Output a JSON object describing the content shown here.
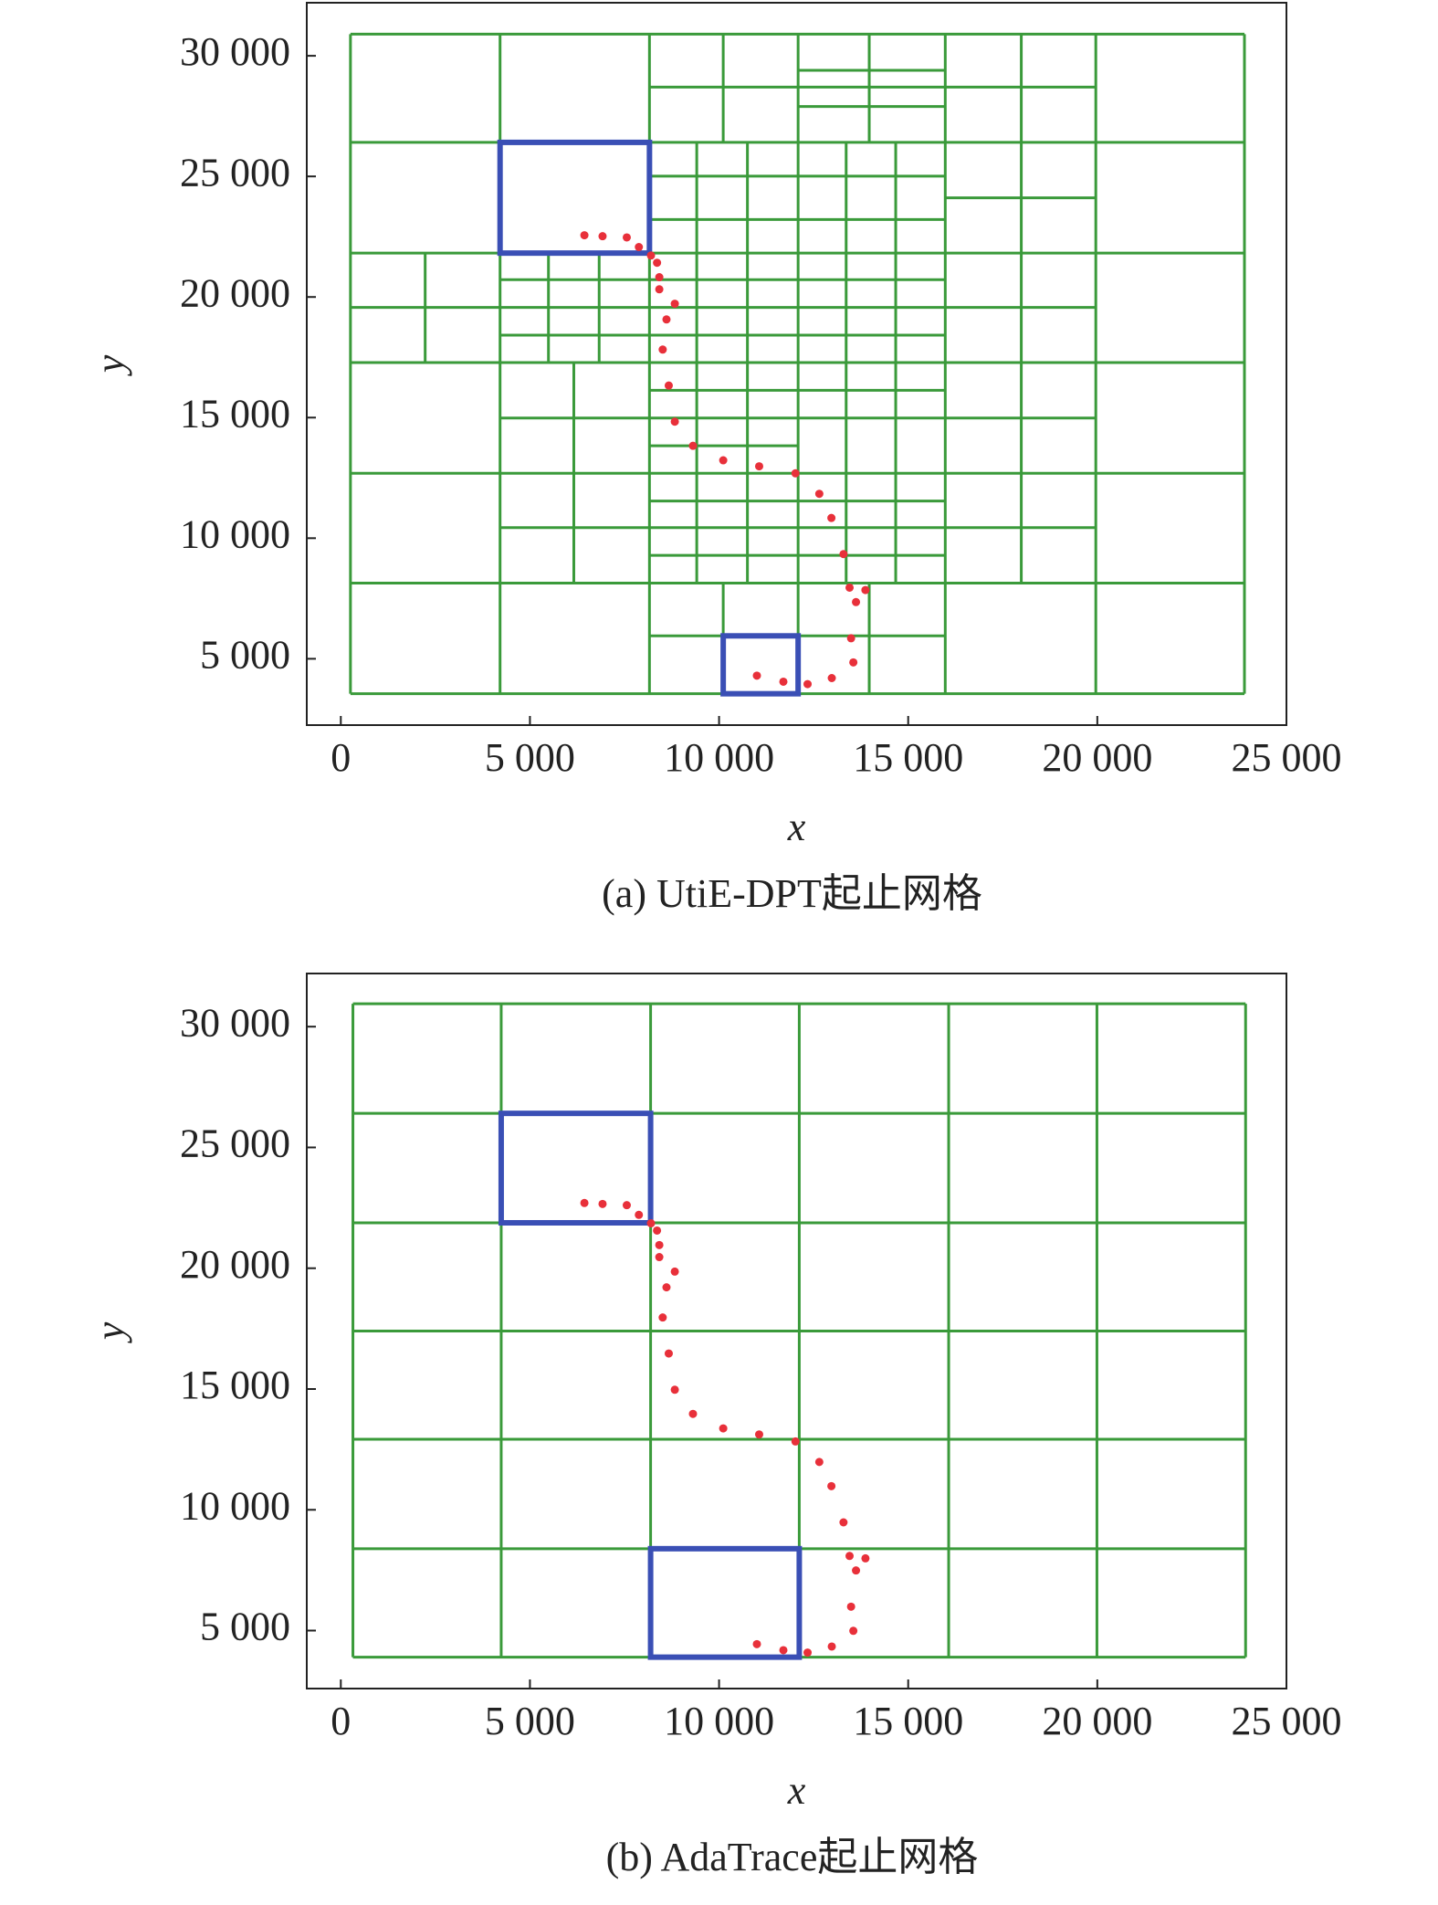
{
  "chart_data": [
    {
      "type": "scatter",
      "caption": "(a) UtiE-DPT起止网格",
      "xlabel": "x",
      "ylabel": "y",
      "xlim": [
        -900,
        25000
      ],
      "ylim": [
        2250,
        32200
      ],
      "xticks": [
        0,
        {
          "value": 5000,
          "label": "5 000"
        },
        {
          "value": 10000,
          "label": "10 000"
        },
        {
          "value": 15000,
          "label": "15 000"
        },
        {
          "value": 20000,
          "label": "20 000"
        },
        {
          "value": 25000,
          "label": "25 000"
        }
      ],
      "yticks": [
        {
          "value": 5000,
          "label": "5 000"
        },
        {
          "value": 10000,
          "label": "10 000"
        },
        {
          "value": 15000,
          "label": "15 000"
        },
        {
          "value": 20000,
          "label": "20 000"
        },
        {
          "value": 25000,
          "label": "25 000"
        },
        {
          "value": 30000,
          "label": "30 000"
        }
      ],
      "grid_color": "#3a9a3a",
      "od_color": "#3a4fb5",
      "color": "#e8303a",
      "grid_segments": [
        [
          255,
          30900,
          23890,
          30900
        ],
        [
          255,
          26410,
          23890,
          26410
        ],
        [
          255,
          21820,
          23890,
          21820
        ],
        [
          255,
          17280,
          23890,
          17280
        ],
        [
          255,
          12690,
          23890,
          12690
        ],
        [
          255,
          8140,
          23890,
          8140
        ],
        [
          255,
          3550,
          23890,
          3550
        ],
        [
          8160,
          28700,
          19960,
          28700
        ],
        [
          12090,
          29400,
          15980,
          29400
        ],
        [
          12090,
          27900,
          15980,
          27900
        ],
        [
          8160,
          25010,
          15980,
          25010
        ],
        [
          15980,
          24110,
          19960,
          24110
        ],
        [
          8160,
          23210,
          15980,
          23210
        ],
        [
          4210,
          20720,
          15980,
          20720
        ],
        [
          255,
          19570,
          19960,
          19570
        ],
        [
          4210,
          18420,
          15980,
          18420
        ],
        [
          8160,
          16130,
          15980,
          16130
        ],
        [
          4210,
          14980,
          19960,
          14980
        ],
        [
          8160,
          13830,
          12090,
          13830
        ],
        [
          8160,
          11540,
          15980,
          11540
        ],
        [
          4210,
          10440,
          19960,
          10440
        ],
        [
          8160,
          9290,
          15980,
          9290
        ],
        [
          8160,
          5950,
          15980,
          5950
        ],
        [
          255,
          3550,
          255,
          30900
        ],
        [
          4210,
          3550,
          4210,
          30900
        ],
        [
          8160,
          3550,
          8160,
          30900
        ],
        [
          15980,
          3550,
          15980,
          30900
        ],
        [
          19960,
          3550,
          19960,
          30900
        ],
        [
          23890,
          3550,
          23890,
          30900
        ],
        [
          17990,
          8140,
          17990,
          30900
        ],
        [
          10110,
          26410,
          10110,
          30900
        ],
        [
          10110,
          3550,
          10110,
          8140
        ],
        [
          12090,
          3550,
          12090,
          30900
        ],
        [
          13970,
          26410,
          13970,
          30900
        ],
        [
          13970,
          3550,
          13970,
          8140
        ],
        [
          9410,
          8140,
          9410,
          26410
        ],
        [
          10750,
          8140,
          10750,
          26410
        ],
        [
          13360,
          8140,
          13360,
          26410
        ],
        [
          14670,
          8140,
          14670,
          26410
        ],
        [
          2230,
          17280,
          2230,
          21820
        ],
        [
          5490,
          17280,
          5490,
          21820
        ],
        [
          6830,
          17280,
          6830,
          21820
        ],
        [
          6160,
          8140,
          6160,
          17280
        ]
      ],
      "od_cells": [
        [
          4210,
          21820,
          8160,
          26410
        ],
        [
          10110,
          3550,
          12090,
          5950
        ]
      ],
      "x": [
        6440,
        6920,
        7560,
        7880,
        8200,
        8360,
        8420,
        8420,
        8830,
        8610,
        8510,
        8670,
        8830,
        9310,
        10110,
        11060,
        12020,
        12650,
        12970,
        13290,
        13450,
        13870,
        13620,
        13490,
        13550,
        12980,
        12340,
        11700,
        11000
      ],
      "y": [
        22560,
        22520,
        22470,
        22070,
        21720,
        21420,
        20820,
        20320,
        19720,
        19070,
        17820,
        16330,
        14830,
        13830,
        13230,
        12980,
        12690,
        11840,
        10840,
        9340,
        7950,
        7850,
        7350,
        5850,
        4850,
        4200,
        3950,
        4050,
        4300
      ]
    },
    {
      "type": "scatter",
      "caption": "(b) AdaTrace起止网格",
      "xlabel": "x",
      "ylabel": "y",
      "xlim": [
        -900,
        25000
      ],
      "ylim": [
        2600,
        32200
      ],
      "xticks": [
        0,
        {
          "value": 5000,
          "label": "5 000"
        },
        {
          "value": 10000,
          "label": "10 000"
        },
        {
          "value": 15000,
          "label": "15 000"
        },
        {
          "value": 20000,
          "label": "20 000"
        },
        {
          "value": 25000,
          "label": "25 000"
        }
      ],
      "yticks": [
        {
          "value": 5000,
          "label": "5 000"
        },
        {
          "value": 10000,
          "label": "10 000"
        },
        {
          "value": 15000,
          "label": "15 000"
        },
        {
          "value": 20000,
          "label": "20 000"
        },
        {
          "value": 25000,
          "label": "25 000"
        },
        {
          "value": 30000,
          "label": "30 000"
        }
      ],
      "grid_color": "#3a9a3a",
      "od_color": "#3a4fb5",
      "color": "#e8303a",
      "grid_segments": [
        [
          320,
          30950,
          23920,
          30950
        ],
        [
          320,
          26410,
          23920,
          26410
        ],
        [
          320,
          21880,
          23920,
          21880
        ],
        [
          320,
          17400,
          23920,
          17400
        ],
        [
          320,
          12920,
          23920,
          12920
        ],
        [
          320,
          8390,
          23920,
          8390
        ],
        [
          320,
          3900,
          23920,
          3900
        ],
        [
          320,
          3900,
          320,
          30950
        ],
        [
          4240,
          3900,
          4240,
          30950
        ],
        [
          8190,
          3900,
          8190,
          30950
        ],
        [
          12120,
          3900,
          12120,
          30950
        ],
        [
          16070,
          3900,
          16070,
          30950
        ],
        [
          19990,
          3900,
          19990,
          30950
        ],
        [
          23920,
          3900,
          23920,
          30950
        ]
      ],
      "od_cells": [
        [
          4240,
          21880,
          8190,
          26410
        ],
        [
          8190,
          3900,
          12120,
          8390
        ]
      ],
      "x": [
        6440,
        6920,
        7560,
        7880,
        8200,
        8360,
        8420,
        8420,
        8830,
        8610,
        8510,
        8670,
        8830,
        9310,
        10110,
        11060,
        12020,
        12650,
        12970,
        13290,
        13450,
        13870,
        13620,
        13490,
        13550,
        12980,
        12340,
        11700,
        11000
      ],
      "y": [
        22700,
        22660,
        22610,
        22210,
        21860,
        21560,
        20960,
        20460,
        19860,
        19210,
        17960,
        16470,
        14970,
        13970,
        13370,
        13120,
        12830,
        11980,
        10980,
        9480,
        8090,
        7990,
        7490,
        5990,
        4990,
        4340,
        4090,
        4190,
        4440
      ]
    }
  ]
}
